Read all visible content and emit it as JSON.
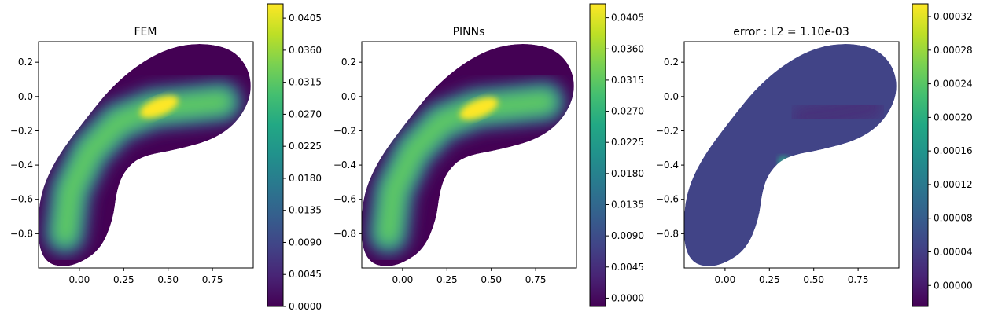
{
  "chart_data": [
    {
      "type": "heatmap",
      "title": "FEM",
      "xlabel": "",
      "ylabel": "",
      "xlim": [
        -0.23,
        0.98
      ],
      "ylim": [
        -1.0,
        0.32
      ],
      "xticks": [
        0.0,
        0.25,
        0.5,
        0.75
      ],
      "xtick_labels": [
        "0.00",
        "0.25",
        "0.50",
        "0.75"
      ],
      "yticks": [
        0.2,
        0.0,
        -0.2,
        -0.4,
        -0.6,
        -0.8
      ],
      "ytick_labels": [
        "0.2",
        "0.0",
        "−0.2",
        "−0.4",
        "−0.6",
        "−0.8"
      ],
      "colorbar": {
        "range": [
          0.0,
          0.0425
        ],
        "ticks": [
          0.0,
          0.0045,
          0.009,
          0.0135,
          0.018,
          0.0225,
          0.027,
          0.0315,
          0.036,
          0.0405
        ],
        "tick_labels": [
          "0.0000",
          "0.0045",
          "0.0090",
          "0.0135",
          "0.0180",
          "0.0225",
          "0.0270",
          "0.0315",
          "0.0360",
          "0.0405"
        ]
      },
      "peak": {
        "x": 0.45,
        "y": -0.06,
        "value": 0.0425
      }
    },
    {
      "type": "heatmap",
      "title": "PINNs",
      "xlabel": "",
      "ylabel": "",
      "xlim": [
        -0.23,
        0.98
      ],
      "ylim": [
        -1.0,
        0.32
      ],
      "xticks": [
        0.0,
        0.25,
        0.5,
        0.75
      ],
      "xtick_labels": [
        "0.00",
        "0.25",
        "0.50",
        "0.75"
      ],
      "yticks": [
        0.2,
        0.0,
        -0.2,
        -0.4,
        -0.6,
        -0.8
      ],
      "ytick_labels": [
        "0.2",
        "0.0",
        "−0.2",
        "−0.4",
        "−0.6",
        "−0.8"
      ],
      "colorbar": {
        "range": [
          -0.0012,
          0.0425
        ],
        "ticks": [
          0.0,
          0.0045,
          0.009,
          0.0135,
          0.018,
          0.0225,
          0.027,
          0.0315,
          0.036,
          0.0405
        ],
        "tick_labels": [
          "0.0000",
          "0.0045",
          "0.0090",
          "0.0135",
          "0.0180",
          "0.0225",
          "0.0270",
          "0.0315",
          "0.0360",
          "0.0405"
        ]
      },
      "peak": {
        "x": 0.43,
        "y": -0.07,
        "value": 0.0425
      }
    },
    {
      "type": "heatmap",
      "title": "error : L2 = 1.10e-03",
      "xlabel": "",
      "ylabel": "",
      "xlim": [
        -0.23,
        0.98
      ],
      "ylim": [
        -1.0,
        0.32
      ],
      "xticks": [
        0.0,
        0.25,
        0.5,
        0.75
      ],
      "xtick_labels": [
        "0.00",
        "0.25",
        "0.50",
        "0.75"
      ],
      "yticks": [
        0.2,
        0.0,
        -0.2,
        -0.4,
        -0.6,
        -0.8
      ],
      "ytick_labels": [
        "0.2",
        "0.0",
        "−0.2",
        "−0.4",
        "−0.6",
        "−0.8"
      ],
      "colorbar": {
        "range": [
          -2.5e-05,
          0.000335
        ],
        "ticks": [
          0.0,
          4e-05,
          8e-05,
          0.00012,
          0.00016,
          0.0002,
          0.00024,
          0.00028,
          0.00032
        ],
        "tick_labels": [
          "0.00000",
          "0.00004",
          "0.00008",
          "0.00012",
          "0.00016",
          "0.00020",
          "0.00024",
          "0.00028",
          "0.00032"
        ]
      },
      "peak": {
        "x": 0.33,
        "y": -0.38,
        "value": 0.00032
      }
    }
  ]
}
